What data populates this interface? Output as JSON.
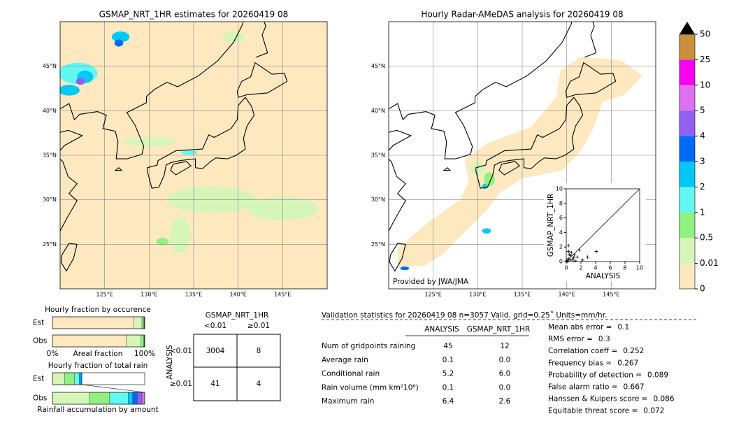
{
  "chart_data": [
    {
      "type": "map",
      "title": "GSMAP_NRT_1HR estimates for 20260419 08",
      "xlim": [
        120,
        150
      ],
      "ylim": [
        20,
        50
      ],
      "xticks": [
        {
          "value": 125,
          "label": "125°E"
        },
        {
          "value": 130,
          "label": "130°E"
        },
        {
          "value": 135,
          "label": "135°E"
        },
        {
          "value": 140,
          "label": "140°E"
        },
        {
          "value": 145,
          "label": "145°E"
        }
      ],
      "yticks": [
        {
          "value": 25,
          "label": "25°N"
        },
        {
          "value": 30,
          "label": "30°N"
        },
        {
          "value": 35,
          "label": "35°N"
        },
        {
          "value": 40,
          "label": "40°N"
        },
        {
          "value": 45,
          "label": "45°N"
        }
      ],
      "grid": true
    },
    {
      "type": "map",
      "title": "Hourly Radar-AMeDAS analysis for 20260419 08",
      "annotation": "Provided by JWA/JMA",
      "xlim": [
        120,
        150
      ],
      "ylim": [
        20,
        50
      ],
      "xticks": [
        {
          "value": 125,
          "label": "125°E"
        },
        {
          "value": 130,
          "label": "130°E"
        },
        {
          "value": 135,
          "label": "135°E"
        },
        {
          "value": 140,
          "label": "140°E"
        },
        {
          "value": 145,
          "label": "145°E"
        }
      ],
      "yticks": [
        {
          "value": 25,
          "label": "25°N"
        },
        {
          "value": 30,
          "label": "30°N"
        },
        {
          "value": 35,
          "label": "35°N"
        },
        {
          "value": 40,
          "label": "40°N"
        },
        {
          "value": 45,
          "label": "45°N"
        }
      ],
      "grid": true
    },
    {
      "type": "colorbar",
      "yticks": [
        0,
        0.01,
        0.5,
        1,
        2,
        3,
        4,
        5,
        10,
        25,
        50
      ],
      "colors": [
        "#fde8c0",
        "#d6f5b8",
        "#90f080",
        "#60f8f0",
        "#00c8f8",
        "#0068f8",
        "#9060f0",
        "#e070f0",
        "#f800f0",
        "#c89038"
      ],
      "extend_color": "#000000"
    },
    {
      "type": "scatter",
      "xlabel": "ANALYSIS",
      "ylabel": "GSMAP_NRT_1HR",
      "xlim": [
        0,
        10
      ],
      "ylim": [
        0,
        10
      ],
      "xticks": [
        0,
        2,
        4,
        6,
        8,
        10
      ],
      "yticks": [
        0,
        2,
        4,
        6,
        8,
        10
      ],
      "x": [
        0.1,
        0.2,
        0.3,
        0.5,
        0.6,
        0.8,
        1.0,
        1.2,
        0.4,
        0.3,
        1.5,
        1.8,
        2.9,
        4.1,
        0.3,
        0.7,
        2.2,
        1.1
      ],
      "y": [
        0.1,
        0.0,
        0.4,
        0.2,
        0.8,
        0.3,
        0.5,
        0.1,
        1.0,
        2.2,
        0.6,
        1.6,
        0.6,
        1.4,
        1.4,
        1.2,
        0.2,
        0.9
      ]
    },
    {
      "type": "stacked_hbar",
      "title": "Hourly fraction by occurence",
      "xlabel": "Areal fraction",
      "categories": [
        "Est",
        "Obs"
      ],
      "xlim": [
        0,
        100
      ],
      "xticks": [
        {
          "value": 0,
          "label": "0%"
        },
        {
          "value": 100,
          "label": "100%"
        }
      ],
      "series": [
        {
          "color": "#fde8c0",
          "values": [
            88,
            80
          ]
        },
        {
          "color": "#d6f5b8",
          "values": [
            9,
            16
          ]
        },
        {
          "color": "#90f080",
          "values": [
            2,
            3
          ]
        },
        {
          "color": "#207020",
          "values": [
            1,
            1
          ]
        }
      ]
    },
    {
      "type": "stacked_hbar",
      "title": "Hourly fraction of total rain",
      "xlabel": "Rainfall accumulation by amount",
      "categories": [
        "Est",
        "Obs"
      ],
      "xlim": [
        0,
        100
      ],
      "series": [
        {
          "color": "#d6f5b8",
          "values": [
            13,
            40
          ]
        },
        {
          "color": "#90f080",
          "values": [
            11,
            22
          ]
        },
        {
          "color": "#60f8f0",
          "values": [
            5,
            20
          ]
        },
        {
          "color": "#00c8f8",
          "values": [
            2,
            5
          ]
        },
        {
          "color": "#0068f8",
          "values": [
            1,
            5
          ]
        },
        {
          "color": "#9060f0",
          "values": [
            0,
            5
          ]
        },
        {
          "color": "#e070f0",
          "values": [
            0,
            3
          ]
        }
      ]
    }
  ],
  "contingency": {
    "title": "GSMAP_NRT_1HR",
    "columns": [
      "<0.01",
      "≥0.01"
    ],
    "row_title": "ANALYSIS",
    "rows": [
      "<0.01",
      "≥0.01"
    ],
    "cells": [
      [
        "3004",
        "8"
      ],
      [
        "41",
        "4"
      ]
    ]
  },
  "validation": {
    "title": "Validation statistics for 20260419 08  n=3057 Valid. grid=0.25˚ Units=mm/hr.",
    "columns": [
      "ANALYSIS",
      "GSMAP_NRT_1HR"
    ],
    "rows": [
      {
        "label": "Num of gridpoints raining",
        "values": [
          "45",
          "12"
        ]
      },
      {
        "label": "Average rain",
        "values": [
          "0.1",
          "0.0"
        ]
      },
      {
        "label": "Conditional rain",
        "values": [
          "5.2",
          "6.0"
        ]
      },
      {
        "label": "Rain volume (mm km²10⁶)",
        "values": [
          "0.1",
          "0.0"
        ]
      },
      {
        "label": "Maximum rain",
        "values": [
          "6.4",
          "2.6"
        ]
      }
    ],
    "scores": [
      {
        "label": "Mean abs error =",
        "value": "0.1"
      },
      {
        "label": "RMS error =",
        "value": "0.3"
      },
      {
        "label": "Correlation coeff =",
        "value": "0.252"
      },
      {
        "label": "Frequency bias =",
        "value": "0.267"
      },
      {
        "label": "Probability of detection =",
        "value": "0.089"
      },
      {
        "label": "False alarm ratio =",
        "value": "0.667"
      },
      {
        "label": "Hanssen & Kuipers score =",
        "value": "0.086"
      },
      {
        "label": "Equitable threat score =",
        "value": "0.072"
      }
    ]
  }
}
